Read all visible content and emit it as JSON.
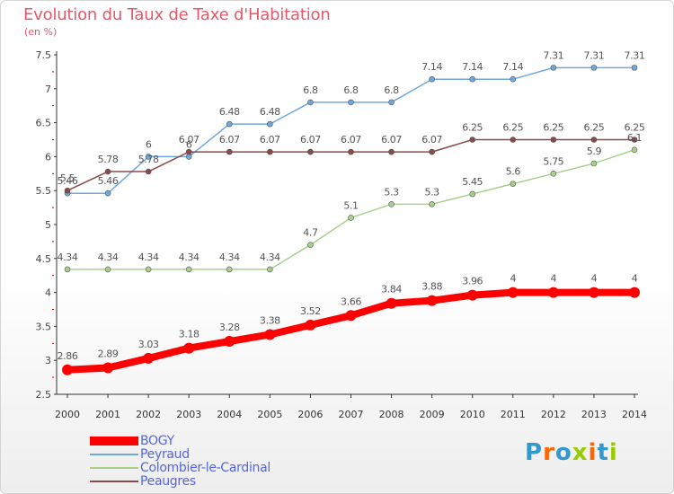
{
  "title": "Evolution du Taux de Taxe d'Habitation",
  "unit_label": "(en %)",
  "brand": "Proxiti",
  "chart_data": {
    "type": "line",
    "x": [
      "2000",
      "2001",
      "2002",
      "2003",
      "2004",
      "2005",
      "2006",
      "2007",
      "2008",
      "2009",
      "2010",
      "2011",
      "2012",
      "2013",
      "2014"
    ],
    "ylim": [
      2.5,
      7.5
    ],
    "yticks": [
      "2.5",
      "3",
      "3.5",
      "4",
      "4.5",
      "5",
      "5.5",
      "6",
      "6.5",
      "7",
      "7.5"
    ],
    "grid": false,
    "legend_position": "bottom-left",
    "series": [
      {
        "name": "BOGY",
        "color": "#ff0000",
        "values": [
          2.86,
          2.89,
          3.03,
          3.18,
          3.28,
          3.38,
          3.52,
          3.66,
          3.84,
          3.88,
          3.96,
          4,
          4,
          4,
          4
        ],
        "labels": [
          "2.86",
          "2.89",
          "3.03",
          "3.18",
          "3.28",
          "3.38",
          "3.52",
          "3.66",
          "3.84",
          "3.88",
          "3.96",
          "4",
          "4",
          "4",
          "4"
        ]
      },
      {
        "name": "Peyraud",
        "color": "#6fa8dc",
        "values": [
          5.46,
          5.46,
          6,
          6,
          6.48,
          6.48,
          6.8,
          6.8,
          6.8,
          7.14,
          7.14,
          7.14,
          7.31,
          7.31,
          7.31
        ],
        "labels": [
          "5.46",
          "5.46",
          "6",
          "6",
          "6.48",
          "6.48",
          "6.8",
          "6.8",
          "6.8",
          "7.14",
          "7.14",
          "7.14",
          "7.31",
          "7.31",
          "7.31"
        ]
      },
      {
        "name": "Colombier-le-Cardinal",
        "color": "#a8d08d",
        "values": [
          4.34,
          4.34,
          4.34,
          4.34,
          4.34,
          4.34,
          4.7,
          5.1,
          5.3,
          5.3,
          5.45,
          5.6,
          5.75,
          5.9,
          6.1
        ],
        "labels": [
          "4.34",
          "4.34",
          "4.34",
          "4.34",
          "4.34",
          "4.34",
          "4.7",
          "5.1",
          "5.3",
          "5.3",
          "5.45",
          "5.6",
          "5.75",
          "5.9",
          "6.1"
        ]
      },
      {
        "name": "Peaugres",
        "color": "#8b4a4a",
        "values": [
          5.5,
          5.78,
          5.78,
          6.07,
          6.07,
          6.07,
          6.07,
          6.07,
          6.07,
          6.07,
          6.25,
          6.25,
          6.25,
          6.25,
          6.25
        ],
        "labels": [
          "5.5",
          "5.78",
          "5.78",
          "6.07",
          "6.07",
          "6.07",
          "6.07",
          "6.07",
          "6.07",
          "6.07",
          "6.25",
          "6.25",
          "6.25",
          "6.25",
          "6.25"
        ]
      }
    ]
  }
}
